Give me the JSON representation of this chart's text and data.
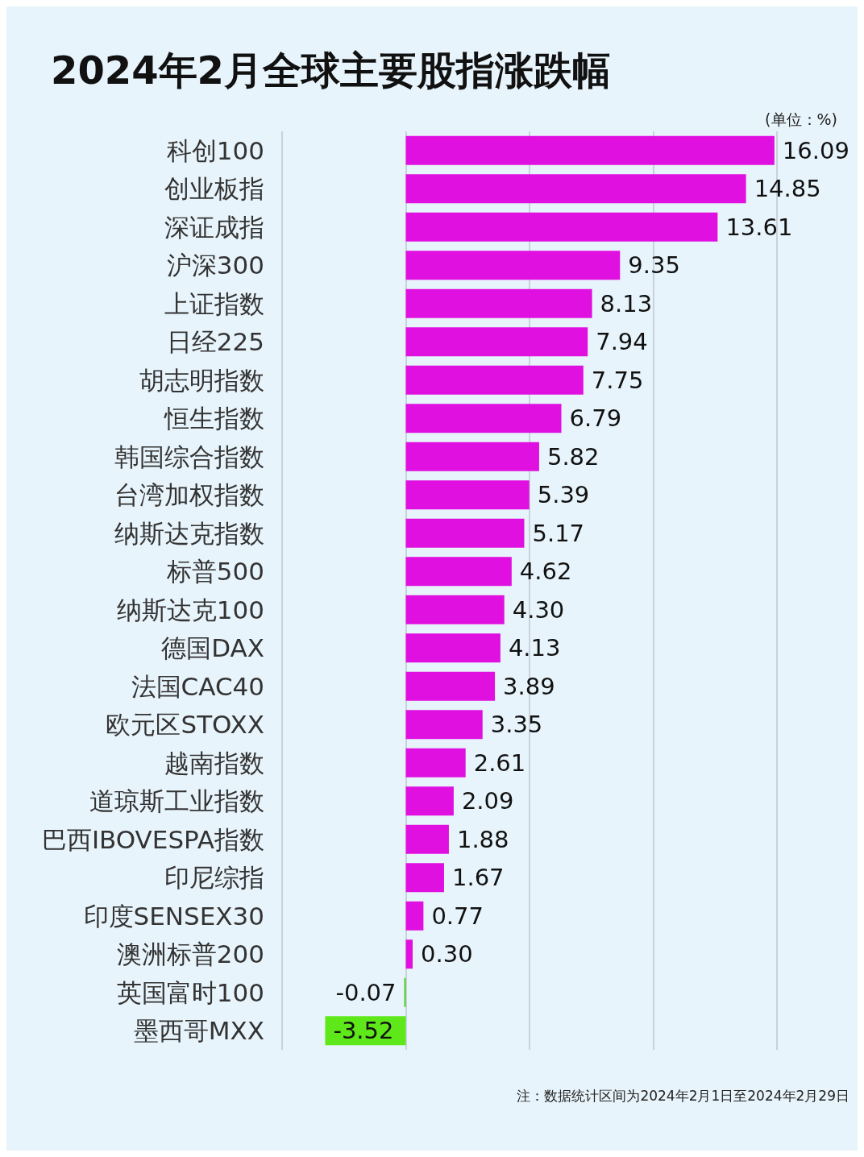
{
  "chart_data": {
    "type": "bar",
    "orientation": "horizontal",
    "title": "2024年2月全球主要股指涨跌幅",
    "subtitle": "(单位：%)",
    "categories": [
      "科创100",
      "创业板指",
      "深证成指",
      "沪深300",
      "上证指数",
      "日经225",
      "胡志明指数",
      "恒生指数",
      "韩国综合指数",
      "台湾加权指数",
      "纳斯达克指数",
      "标普500",
      "纳斯达克100",
      "德国DAX",
      "法国CAC40",
      "欧元区STOXX",
      "越南指数",
      "道琼斯工业指数",
      "巴西IBOVESPA指数",
      "印尼综指",
      "印度SENSEX30",
      "澳洲标普200",
      "英国富时100",
      "墨西哥MXX"
    ],
    "values": [
      16.09,
      14.85,
      13.61,
      9.35,
      8.13,
      7.94,
      7.75,
      6.79,
      5.82,
      5.39,
      5.17,
      4.62,
      4.3,
      4.13,
      3.89,
      3.35,
      2.61,
      2.09,
      1.88,
      1.67,
      0.77,
      0.3,
      -0.07,
      -3.52
    ],
    "value_labels": [
      "16.09",
      "14.85",
      "13.61",
      "9.35",
      "8.13",
      "7.94",
      "7.75",
      "6.79",
      "5.82",
      "5.39",
      "5.17",
      "4.62",
      "4.30",
      "4.13",
      "3.89",
      "3.35",
      "2.61",
      "2.09",
      "1.88",
      "1.67",
      "0.77",
      "0.30",
      "-0.07",
      "-3.52"
    ],
    "colors": [
      "#e010e0",
      "#e010e0",
      "#e010e0",
      "#e010e0",
      "#e010e0",
      "#e010e0",
      "#e010e0",
      "#e010e0",
      "#e010e0",
      "#e010e0",
      "#e010e0",
      "#e010e0",
      "#e010e0",
      "#e010e0",
      "#e010e0",
      "#e010e0",
      "#e010e0",
      "#e010e0",
      "#e010e0",
      "#e010e0",
      "#e010e0",
      "#e010e0",
      "#4fd11c",
      "#5ee81a"
    ],
    "xlim": [
      -5.4,
      16.2
    ],
    "xticks": [
      {
        "value": -5.4,
        "label": null
      },
      {
        "value": 0,
        "label": null
      },
      {
        "value": 5.4,
        "label": null
      },
      {
        "value": 10.8,
        "label": null
      },
      {
        "value": 16.2,
        "label": null
      }
    ],
    "grid": "x",
    "tick_labels": "y",
    "annotations": [
      "注：数据统计区间为2024年2月1日至2024年2月29日"
    ]
  }
}
